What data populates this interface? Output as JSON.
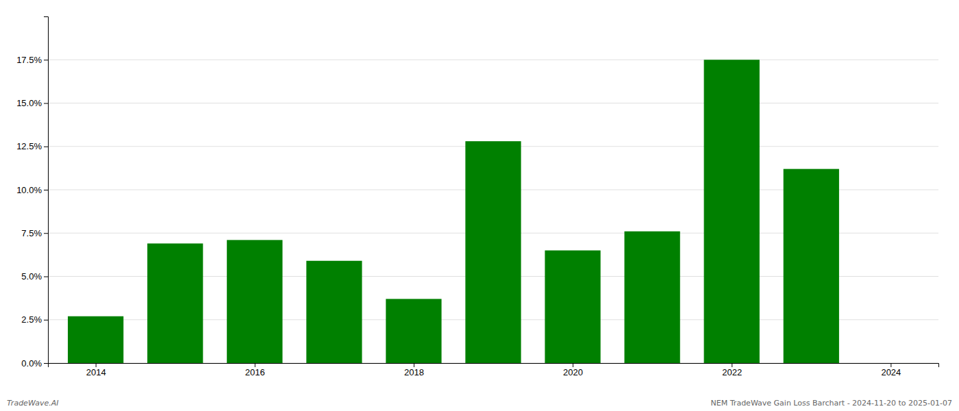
{
  "chart_data": {
    "type": "bar",
    "x": [
      2014,
      2015,
      2016,
      2017,
      2018,
      2019,
      2020,
      2021,
      2022,
      2023
    ],
    "values": [
      0.027,
      0.069,
      0.071,
      0.059,
      0.037,
      0.128,
      0.065,
      0.076,
      0.175,
      0.112
    ],
    "color": "#008000",
    "xlim": [
      2013.4,
      2024.6
    ],
    "xticks": [
      2014,
      2016,
      2018,
      2020,
      2022,
      2024
    ],
    "ylim": [
      0,
      0.2
    ],
    "yticks": [
      {
        "value": 0.0,
        "label": "0.0%"
      },
      {
        "value": 0.025,
        "label": "2.5%"
      },
      {
        "value": 0.05,
        "label": "5.0%"
      },
      {
        "value": 0.075,
        "label": "7.5%"
      },
      {
        "value": 0.1,
        "label": "10.0%"
      },
      {
        "value": 0.125,
        "label": "12.5%"
      },
      {
        "value": 0.15,
        "label": "15.0%"
      },
      {
        "value": 0.175,
        "label": "17.5%"
      }
    ],
    "grid": true,
    "annotations": [
      "TradeWave.AI",
      "NEM TradeWave Gain Loss Barchart - 2024-11-20 to 2025-01-07"
    ]
  }
}
